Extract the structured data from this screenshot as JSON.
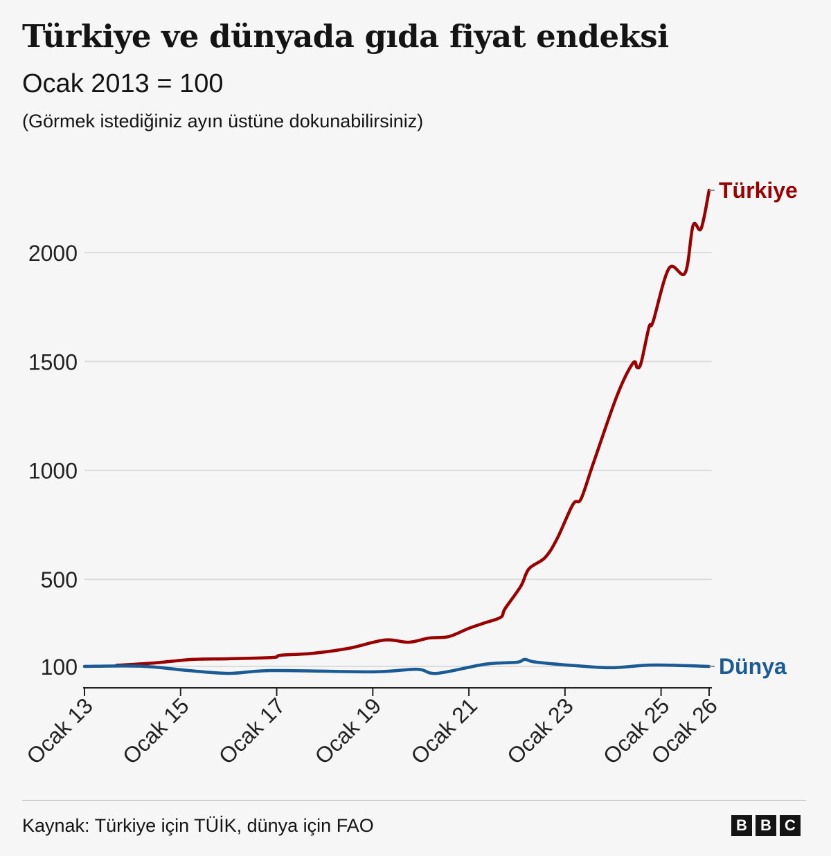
{
  "header": {
    "title": "Türkiye ve dünyada gıda fiyat endeksi",
    "subtitle": "Ocak 2013 = 100",
    "note": "(Görmek istediğiniz ayın üstüne dokunabilirsiniz)"
  },
  "footer": {
    "source": "Kaynak: Türkiye için TÜİK, dünya için FAO",
    "logo_letters": [
      "B",
      "B",
      "C"
    ]
  },
  "chart_data": {
    "type": "line",
    "title": "Türkiye ve dünyada gıda fiyat endeksi",
    "subtitle": "Ocak 2013 = 100",
    "ylim": [
      100,
      2300
    ],
    "yticks": [
      100,
      500,
      1000,
      1500,
      2000
    ],
    "xlim": [
      "2013-01",
      "2026-01"
    ],
    "xticks": [
      {
        "date": "2013-01",
        "label": "Ocak 13"
      },
      {
        "date": "2015-01",
        "label": "Ocak 15"
      },
      {
        "date": "2017-01",
        "label": "Ocak 17"
      },
      {
        "date": "2019-01",
        "label": "Ocak 19"
      },
      {
        "date": "2021-01",
        "label": "Ocak 21"
      },
      {
        "date": "2023-01",
        "label": "Ocak 23"
      },
      {
        "date": "2025-01",
        "label": "Ocak 25"
      },
      {
        "date": "2026-01",
        "label": "Ocak 26"
      }
    ],
    "grid": true,
    "legend": "direct labels at line ends",
    "series": [
      {
        "name": "Türkiye",
        "color": "#990000",
        "points": [
          [
            "2013-09",
            105
          ],
          [
            "2014-06",
            115
          ],
          [
            "2015-04",
            132
          ],
          [
            "2016-01",
            135
          ],
          [
            "2016-12",
            141
          ],
          [
            "2017-02",
            151
          ],
          [
            "2017-10",
            160
          ],
          [
            "2018-07",
            183
          ],
          [
            "2019-04",
            221
          ],
          [
            "2019-10",
            211
          ],
          [
            "2020-03",
            230
          ],
          [
            "2020-08",
            237
          ],
          [
            "2021-01",
            275
          ],
          [
            "2021-05",
            300
          ],
          [
            "2021-09",
            326
          ],
          [
            "2021-10",
            364
          ],
          [
            "2022-02",
            469
          ],
          [
            "2022-04",
            548
          ],
          [
            "2022-08",
            599
          ],
          [
            "2022-11",
            685
          ],
          [
            "2023-03",
            844
          ],
          [
            "2023-05",
            869
          ],
          [
            "2023-08",
            1028
          ],
          [
            "2024-02",
            1343
          ],
          [
            "2024-06",
            1493
          ],
          [
            "2024-07",
            1473
          ],
          [
            "2024-08",
            1493
          ],
          [
            "2024-10",
            1658
          ],
          [
            "2024-11",
            1683
          ],
          [
            "2025-03",
            1928
          ],
          [
            "2025-07",
            1906
          ],
          [
            "2025-09",
            2125
          ],
          [
            "2025-11",
            2110
          ],
          [
            "2026-01",
            2286
          ]
        ]
      },
      {
        "name": "Dünya",
        "color": "#1a5b96",
        "points": [
          [
            "2013-01",
            100
          ],
          [
            "2014-03",
            101
          ],
          [
            "2015-03",
            81
          ],
          [
            "2016-01",
            68
          ],
          [
            "2016-12",
            81
          ],
          [
            "2019-01",
            75
          ],
          [
            "2019-12",
            87
          ],
          [
            "2020-05",
            68
          ],
          [
            "2021-05",
            110
          ],
          [
            "2022-01",
            119
          ],
          [
            "2022-03",
            132
          ],
          [
            "2022-06",
            119
          ],
          [
            "2023-06",
            100
          ],
          [
            "2024-01",
            94
          ],
          [
            "2024-10",
            106
          ],
          [
            "2025-06",
            104
          ],
          [
            "2026-01",
            100
          ]
        ]
      }
    ]
  }
}
